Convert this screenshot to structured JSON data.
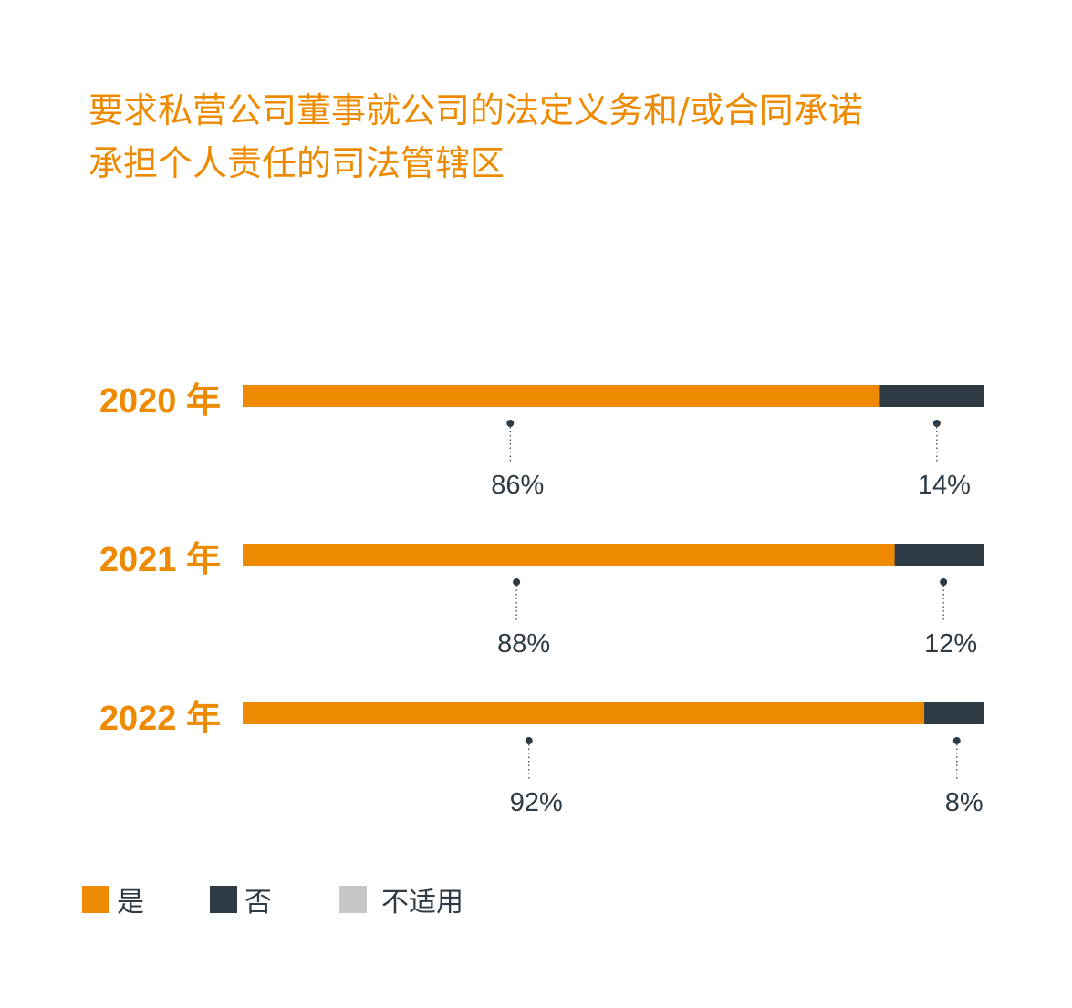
{
  "title": {
    "line1": "要求私营公司董事就公司的法定义务和/或合同承诺",
    "line2": "承担个人责任的司法管辖区"
  },
  "colors": {
    "yes": "#ee8a00",
    "no": "#2e3a44",
    "na": "#c4c6c8",
    "title": "#ee8a00",
    "text": "#2e3a44"
  },
  "legend": [
    {
      "label": "是",
      "color_key": "yes"
    },
    {
      "label": "否",
      "color_key": "no"
    },
    {
      "label": "不适用",
      "color_key": "na"
    }
  ],
  "chart_data": {
    "type": "bar",
    "orientation": "horizontal",
    "stacked": true,
    "categories": [
      "2020 年",
      "2021 年",
      "2022 年"
    ],
    "series": [
      {
        "name": "是",
        "values": [
          86,
          88,
          92
        ],
        "labels": [
          "86%",
          "88%",
          "92%"
        ]
      },
      {
        "name": "否",
        "values": [
          14,
          12,
          8
        ],
        "labels": [
          "14%",
          "12%",
          "8%"
        ]
      },
      {
        "name": "不适用",
        "values": [
          0,
          0,
          0
        ]
      }
    ],
    "xlim": [
      0,
      100
    ],
    "grid": false,
    "legend_position": "bottom-left"
  }
}
